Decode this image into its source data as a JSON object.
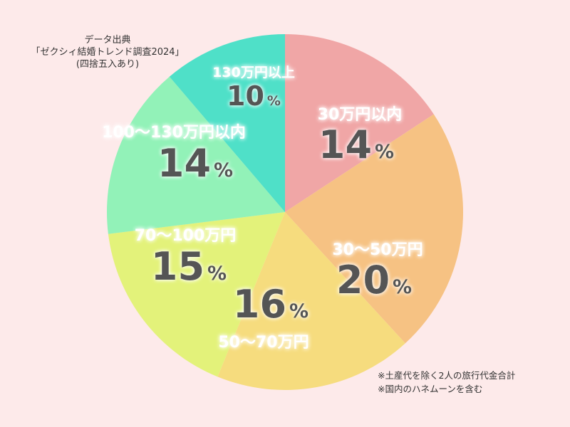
{
  "chart_data": {
    "type": "pie",
    "slices": [
      {
        "label": "30万円以内",
        "value": 14,
        "color": "#f0a6a6"
      },
      {
        "label": "30～50万円",
        "value": 20,
        "color": "#f6c283"
      },
      {
        "label": "50～70万円",
        "value": 16,
        "color": "#f6dc7e"
      },
      {
        "label": "70～100万円",
        "value": 15,
        "color": "#e3f27a"
      },
      {
        "label": "100～130万円以内",
        "value": 14,
        "color": "#92f2b8"
      },
      {
        "label": "130万円以上",
        "value": 10,
        "color": "#4fe0c8"
      }
    ],
    "value_suffix": "%"
  },
  "source": {
    "line1": "データ出典",
    "line2": "「ゼクシィ結婚トレンド調査2024」",
    "line3": "(四捨五入あり)"
  },
  "notes": {
    "line1": "※土産代を除く2人の旅行代金合計",
    "line2": "※国内のハネムーンを含む"
  }
}
